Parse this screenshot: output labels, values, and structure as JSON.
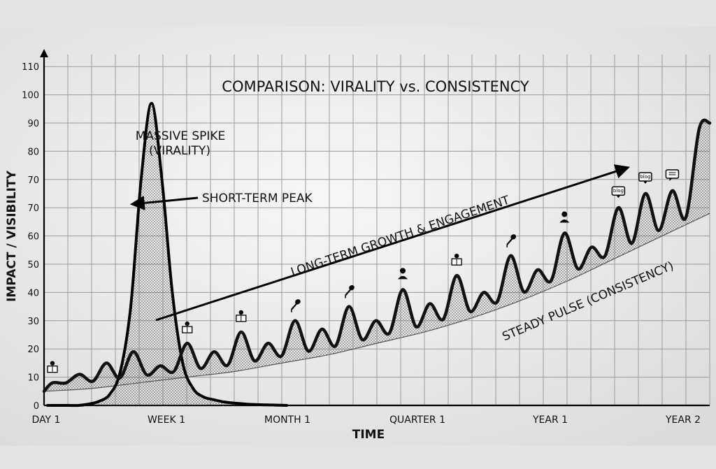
{
  "chart_data": {
    "type": "line",
    "title": "COMPARISON: VIRALITY vs. CONSISTENCY",
    "xlabel": "TIME",
    "ylabel": "IMPACT / VISIBILITY",
    "y_ticks": [
      "0",
      "10",
      "20",
      "30",
      "40",
      "50",
      "60",
      "70",
      "70",
      "80",
      "90",
      "100",
      "110"
    ],
    "x_ticks": [
      "DAY 1",
      "WEEK 1",
      "MONTH 1",
      "QUARTER 1",
      "YEAR 1",
      "YEAR 2"
    ],
    "grid": true,
    "series": [
      {
        "name": "MASSIVE SPIKE (VIRALITY)",
        "peak_value": 107,
        "values": [
          0,
          0,
          0,
          0,
          0.5,
          1.5,
          4,
          12,
          35,
          80,
          107,
          80,
          40,
          15,
          6,
          3,
          2,
          1.2,
          0.8,
          0.5,
          0.3,
          0.2,
          0.1,
          0
        ]
      },
      {
        "name": "STEADY PULSE (CONSISTENCY)",
        "pulse_peaks": [
          8,
          11,
          15,
          19,
          14,
          22,
          19,
          26,
          22,
          30,
          27,
          35,
          30,
          41,
          36,
          46,
          40,
          53,
          48,
          61,
          56,
          70,
          75,
          76,
          98
        ],
        "baseline": [
          5,
          6,
          8,
          10,
          12,
          15,
          18,
          22,
          26,
          31,
          37,
          44,
          52,
          60,
          68
        ]
      }
    ],
    "annotations": {
      "spike_label_line1": "MASSIVE SPIKE",
      "spike_label_line2": "(VIRALITY)",
      "short_term": "SHORT-TERM PEAK",
      "long_term": "LONG-TERM GROWTH & ENGAGEMENT",
      "steady": "STEADY PULSE (CONSISTENCY)"
    },
    "icons": [
      "reader-icon",
      "reader-icon",
      "reader-icon",
      "microphone-icon",
      "microphone-icon",
      "person-icon",
      "reader-icon",
      "microphone-icon",
      "person-icon",
      "blog-icon",
      "blog-icon",
      "chat-icon"
    ],
    "icon_text": {
      "blog": "blog"
    }
  }
}
